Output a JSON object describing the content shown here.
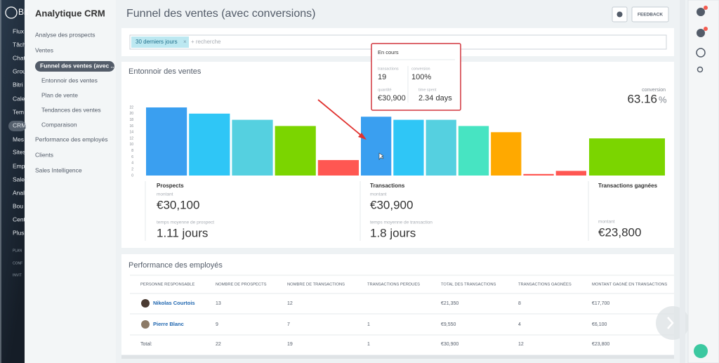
{
  "sidebar": {
    "logo": "Bit",
    "items": [
      "Flux",
      "Tâch",
      "Chat",
      "Grou",
      "Bitri",
      "Cale",
      "Tem",
      "CRM",
      "Mes",
      "Sites",
      "Emp",
      "Sales",
      "Anal",
      "Bou",
      "Cent",
      "Plus",
      "PLAN",
      "CONF",
      "INVIT"
    ]
  },
  "menu": {
    "title": "Analytique CRM",
    "items": [
      "Analyse des prospects",
      "Ventes",
      "Funnel des ventes (avec ...",
      "Entonnoir des ventes",
      "Plan de vente",
      "Tendances des ventes",
      "Comparaison",
      "Performance des employés",
      "Clients",
      "Sales Intelligence"
    ]
  },
  "header": {
    "title": "Funnel des ventes (avec conversions)",
    "feedback": "FEEDBACK"
  },
  "filter": {
    "tag": "30 derniers jours",
    "placeholder": "+ recherche"
  },
  "funnel": {
    "title": "Entonnoir des ventes",
    "conversion_label": "conversion",
    "conversion_value": "63.16",
    "conversion_unit": "%",
    "chart": {
      "type": "bar",
      "ylim": [
        0,
        22
      ],
      "yticks": [
        0,
        2,
        4,
        6,
        8,
        10,
        12,
        14,
        16,
        18,
        20,
        22
      ],
      "groups": [
        {
          "values": [
            22,
            20,
            18,
            16,
            5
          ],
          "colors": [
            "#3a9ff0",
            "#2fc6f6",
            "#55d0e0",
            "#7bd500",
            "#ff5752"
          ]
        },
        {
          "values": [
            19,
            18,
            18,
            16,
            14,
            0.5,
            1.5
          ],
          "colors": [
            "#3a9ff0",
            "#2fc6f6",
            "#55d0e0",
            "#47e4c2",
            "#ffa900",
            "#ff5752",
            "#ff5752"
          ]
        },
        {
          "values": [
            12
          ],
          "colors": [
            "#7bd500"
          ]
        }
      ]
    },
    "stats": [
      {
        "title": "Prospects",
        "amount_label": "montant",
        "amount": "€30,100",
        "time_label": "temps moyenne de prospect",
        "time": "1.11 jours"
      },
      {
        "title": "Transactions",
        "amount_label": "montant",
        "amount": "€30,900",
        "time_label": "temps moyenne de transaction",
        "time": "1.8 jours"
      },
      {
        "title": "Transactions gagnées",
        "amount_label": "montant",
        "amount": "€23,800"
      }
    ]
  },
  "tooltip": {
    "title": "En cours",
    "fields": [
      {
        "label": "transactions",
        "value": "19"
      },
      {
        "label": "conversion",
        "value": "100%"
      },
      {
        "label": "quantité",
        "value": "€30,900"
      },
      {
        "label": "time spent",
        "value": "2.34 days"
      }
    ]
  },
  "table": {
    "title": "Performance des employés",
    "headers": [
      "PERSONNE RESPONSABLE",
      "NOMBRE DE PROSPECTS",
      "NOMBRE DE TRANSACTIONS",
      "TRANSACTIONS PERDUES",
      "TOTAL DES TRANSACTIONS",
      "TRANSACTIONS GAGNÉES",
      "MONTANT GAGNÉ EN TRANSACTIONS"
    ],
    "rows": [
      [
        "Nikolas Courtois",
        "13",
        "12",
        null,
        "€21,350",
        "8",
        "€17,700"
      ],
      [
        "Pierre Blanc",
        "9",
        "7",
        "1",
        "€9,550",
        "4",
        "€6,100"
      ],
      [
        "Total:",
        "22",
        "19",
        "1",
        "€30,900",
        "12",
        "€23,800"
      ]
    ]
  }
}
